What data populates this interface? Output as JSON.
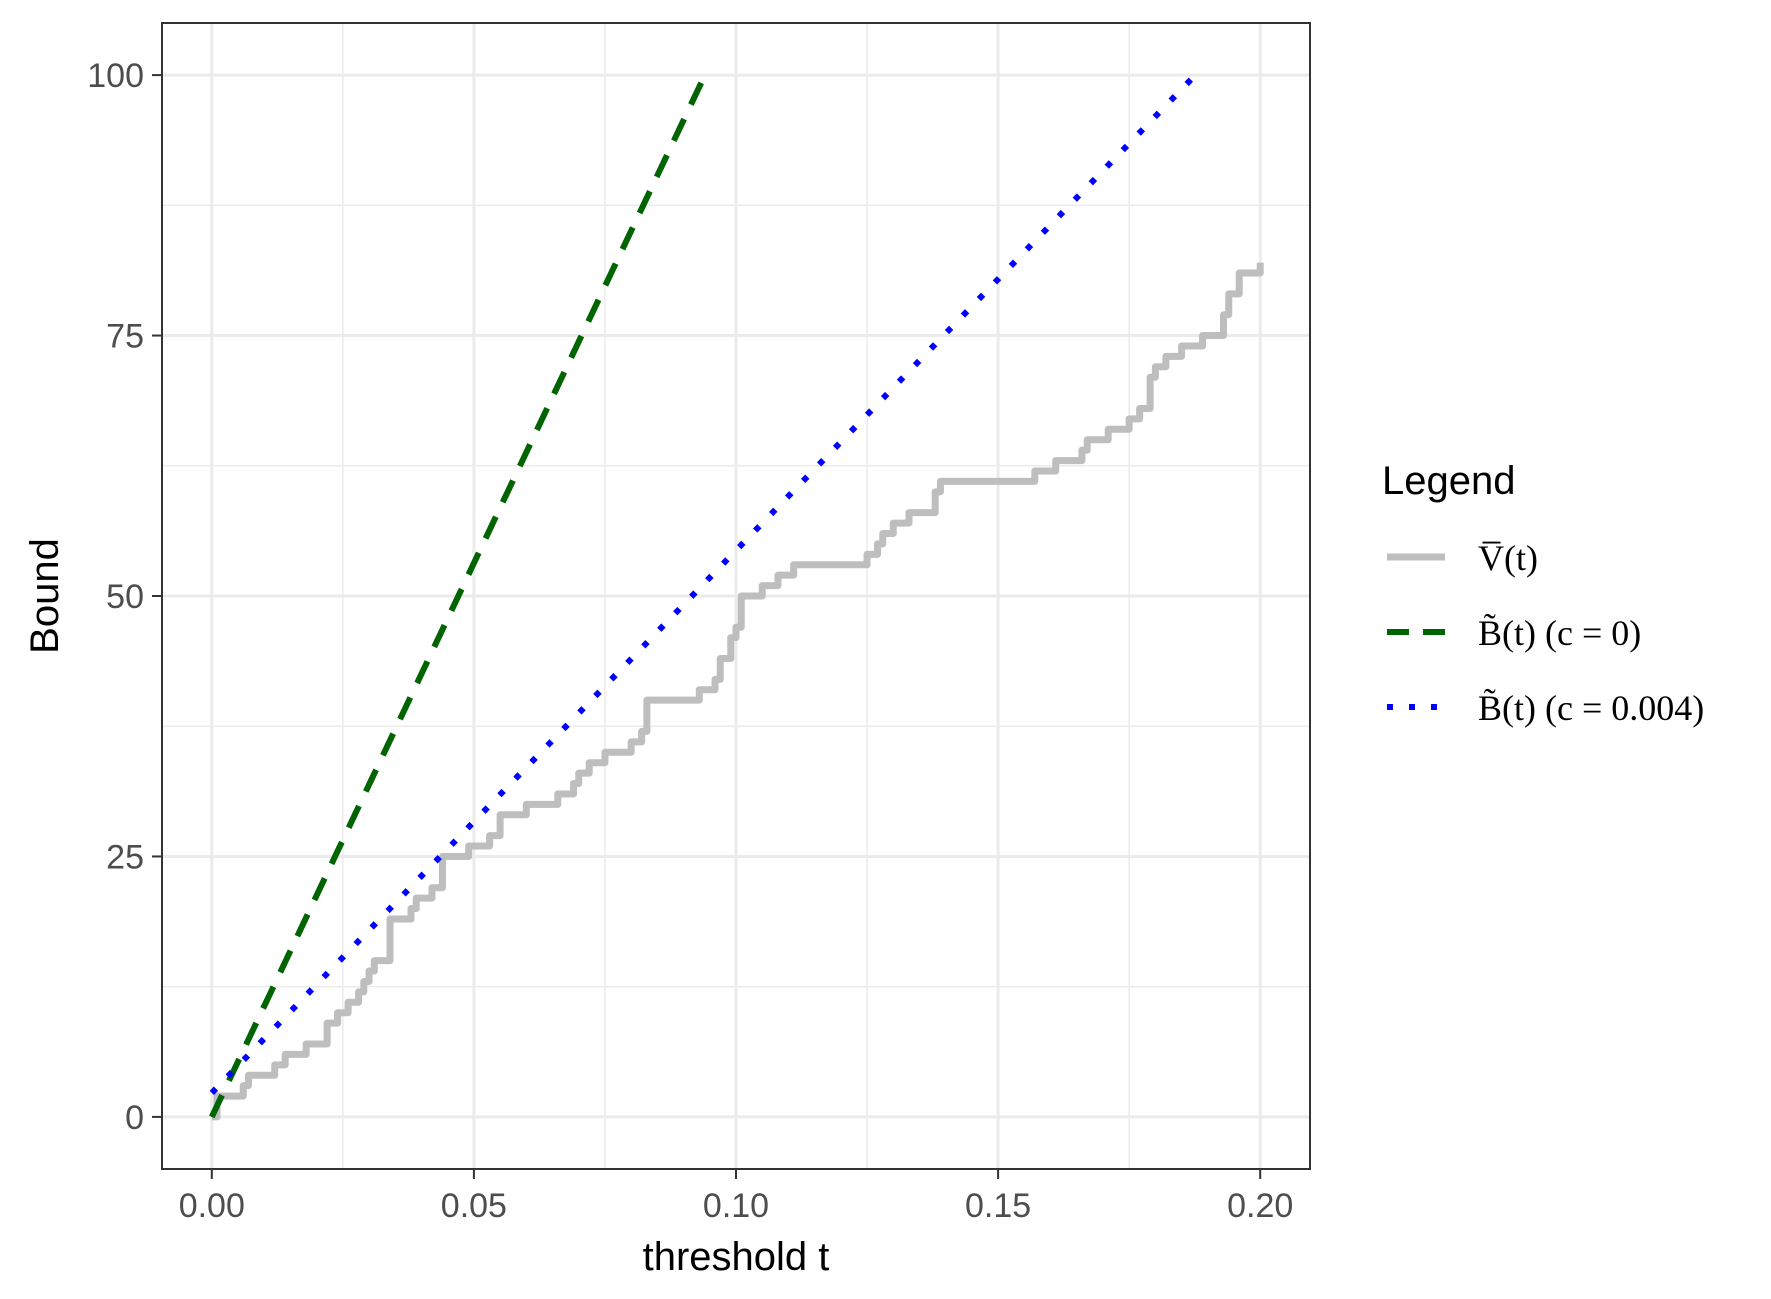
{
  "chart_data": {
    "type": "line",
    "xlabel": "threshold t",
    "ylabel": "Bound",
    "xlim": [
      -0.0095,
      0.2095
    ],
    "ylim": [
      -5,
      105
    ],
    "x_ticks": [
      0.0,
      0.05,
      0.1,
      0.15,
      0.2
    ],
    "x_tick_labels": [
      "0.00",
      "0.05",
      "0.10",
      "0.15",
      "0.20"
    ],
    "y_ticks": [
      0,
      25,
      50,
      75,
      100
    ],
    "y_tick_labels": [
      "0",
      "25",
      "50",
      "75",
      "100"
    ],
    "grid": true,
    "legend": {
      "title": "Legend",
      "position": "right",
      "entries": [
        "V̅(t)",
        "B̃(t) (c = 0)",
        "B̃(t) (c = 0.004)"
      ]
    },
    "series": [
      {
        "name": "V̅(t)",
        "style": "solid",
        "color": "#BEBEBE",
        "x": [
          0.0,
          0.001,
          0.002,
          0.004,
          0.006,
          0.007,
          0.008,
          0.012,
          0.013,
          0.014,
          0.017,
          0.018,
          0.019,
          0.022,
          0.023,
          0.024,
          0.026,
          0.027,
          0.028,
          0.029,
          0.03,
          0.031,
          0.033,
          0.034,
          0.037,
          0.038,
          0.039,
          0.041,
          0.042,
          0.044,
          0.047,
          0.049,
          0.05,
          0.052,
          0.053,
          0.055,
          0.056,
          0.06,
          0.061,
          0.066,
          0.067,
          0.069,
          0.07,
          0.072,
          0.073,
          0.075,
          0.076,
          0.079,
          0.08,
          0.082,
          0.083,
          0.092,
          0.093,
          0.095,
          0.096,
          0.097,
          0.099,
          0.1,
          0.101,
          0.104,
          0.105,
          0.107,
          0.108,
          0.111,
          0.112,
          0.124,
          0.125,
          0.127,
          0.128,
          0.13,
          0.131,
          0.133,
          0.134,
          0.137,
          0.138,
          0.139,
          0.156,
          0.157,
          0.16,
          0.161,
          0.165,
          0.166,
          0.167,
          0.17,
          0.171,
          0.174,
          0.175,
          0.177,
          0.178,
          0.179,
          0.18,
          0.182,
          0.183,
          0.185,
          0.186,
          0.189,
          0.19,
          0.193,
          0.194,
          0.196,
          0.197,
          0.2
        ],
        "y": [
          0,
          2,
          2,
          2,
          3,
          4,
          4,
          5,
          5,
          6,
          6,
          7,
          7,
          9,
          9,
          10,
          11,
          11,
          12,
          13,
          14,
          15,
          15,
          19,
          19,
          20,
          21,
          21,
          22,
          25,
          25,
          26,
          26,
          26,
          27,
          29,
          29,
          30,
          30,
          31,
          31,
          32,
          33,
          34,
          34,
          35,
          35,
          35,
          36,
          37,
          40,
          40,
          41,
          41,
          42,
          44,
          46,
          47,
          50,
          50,
          51,
          51,
          52,
          53,
          53,
          53,
          54,
          55,
          56,
          57,
          57,
          58,
          58,
          58,
          60,
          61,
          61,
          62,
          62,
          63,
          63,
          64,
          65,
          65,
          66,
          66,
          67,
          68,
          68,
          71,
          72,
          73,
          73,
          74,
          74,
          75,
          75,
          77,
          79,
          81,
          81,
          82
        ]
      },
      {
        "name": "B̃(t) (c = 0)",
        "style": "dashed",
        "color": "#006400",
        "x": [
          0.0,
          0.0935
        ],
        "y": [
          0,
          99.4
        ]
      },
      {
        "name": "B̃(t) (c = 0.004)",
        "style": "dotted",
        "color": "#0000FF",
        "x": [
          0.0,
          0.188
        ],
        "y": [
          2.3,
          100.2
        ]
      }
    ]
  }
}
